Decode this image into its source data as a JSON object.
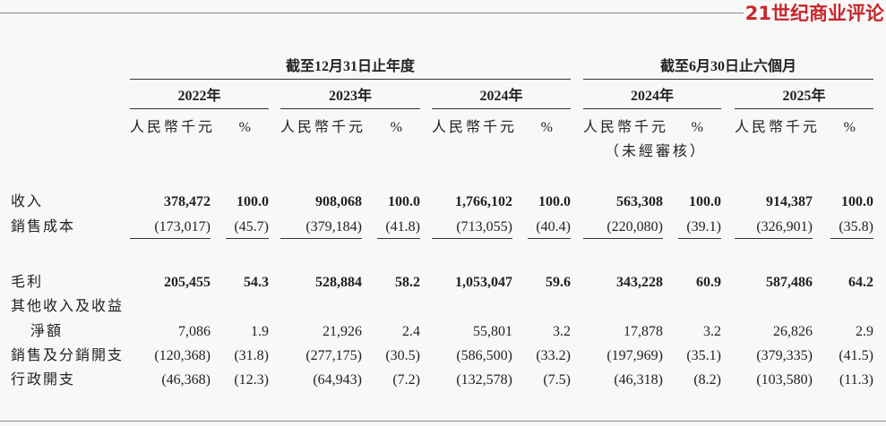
{
  "brand": "21世纪商业评论",
  "table": {
    "groups": [
      "截至12月31日止年度",
      "截至6月30日止六個月"
    ],
    "years": [
      "2022年",
      "2023年",
      "2024年",
      "2024年",
      "2025年"
    ],
    "units": [
      "人民幣千元",
      "%",
      "人民幣千元",
      "%",
      "人民幣千元",
      "%",
      "人民幣千元",
      "%",
      "人民幣千元",
      "%"
    ],
    "unaudited": "（未經審核）",
    "rows": [
      {
        "label": "收入",
        "bold": true,
        "values": [
          "378,472",
          "100.0",
          "908,068",
          "100.0",
          "1,766,102",
          "100.0",
          "563,308",
          "100.0",
          "914,387",
          "100.0"
        ]
      },
      {
        "label": "銷售成本",
        "values": [
          "(173,017)",
          "(45.7)",
          "(379,184)",
          "(41.8)",
          "(713,055)",
          "(40.4)",
          "(220,080)",
          "(39.1)",
          "(326,901)",
          "(35.8)"
        ]
      },
      {
        "label": "毛利",
        "bold": true,
        "values": [
          "205,455",
          "54.3",
          "528,884",
          "58.2",
          "1,053,047",
          "59.6",
          "343,228",
          "60.9",
          "587,486",
          "64.2"
        ]
      },
      {
        "label": "其他收入及收益",
        "label2": "淨額",
        "values": [
          "7,086",
          "1.9",
          "21,926",
          "2.4",
          "55,801",
          "3.2",
          "17,878",
          "3.2",
          "26,826",
          "2.9"
        ]
      },
      {
        "label": "銷售及分銷開支",
        "values": [
          "(120,368)",
          "(31.8)",
          "(277,175)",
          "(30.5)",
          "(586,500)",
          "(33.2)",
          "(197,969)",
          "(35.1)",
          "(379,335)",
          "(41.5)"
        ]
      },
      {
        "label": "行政開支",
        "values": [
          "(46,368)",
          "(12.3)",
          "(64,943)",
          "(7.2)",
          "(132,578)",
          "(7.5)",
          "(46,318)",
          "(8.2)",
          "(103,580)",
          "(11.3)"
        ]
      }
    ]
  }
}
